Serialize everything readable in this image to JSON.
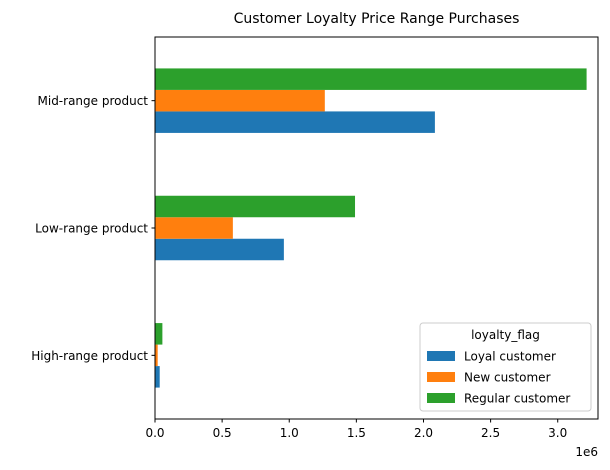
{
  "chart_data": {
    "type": "bar",
    "orientation": "horizontal",
    "title": "Customer Loyalty Price Range Purchases",
    "xlabel": "",
    "ylabel": "",
    "x_offset_label": "1e6",
    "categories": [
      "High-range product",
      "Low-range product",
      "Mid-range product"
    ],
    "series": [
      {
        "name": "Loyal customer",
        "color": "#1f77b4",
        "values": [
          35000,
          960000,
          2085000
        ]
      },
      {
        "name": "New customer",
        "color": "#ff7f0e",
        "values": [
          20000,
          580000,
          1265000
        ]
      },
      {
        "name": "Regular customer",
        "color": "#2ca02c",
        "values": [
          55000,
          1490000,
          3215000
        ]
      }
    ],
    "xlim": [
      0,
      3300000
    ],
    "x_ticks": [
      0,
      500000,
      1000000,
      1500000,
      2000000,
      2500000,
      3000000
    ],
    "x_tick_labels": [
      "0.0",
      "0.5",
      "1.0",
      "1.5",
      "2.0",
      "2.5",
      "3.0"
    ],
    "grid": false,
    "legend": {
      "title": "loyalty_flag",
      "placement": "lower-right"
    }
  }
}
